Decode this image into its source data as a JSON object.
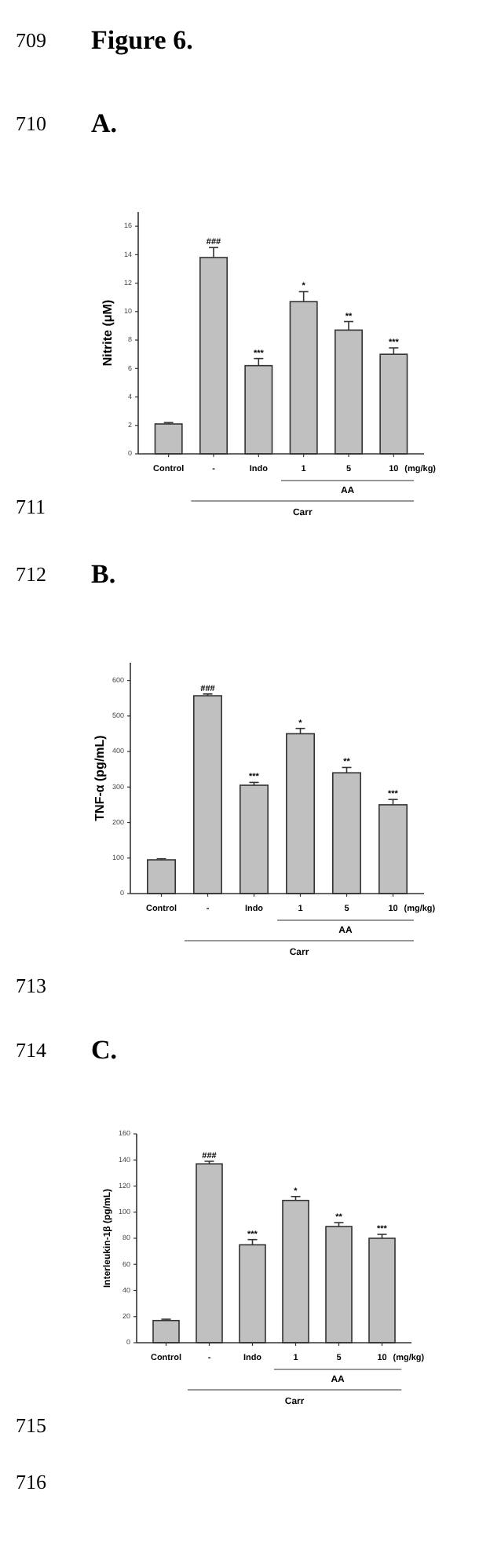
{
  "chart_data": [
    {
      "type": "bar",
      "title": "A.",
      "ylabel": "Nitrite (μM)",
      "categories": [
        "Control",
        "-",
        "Indo",
        "1",
        "5",
        "10"
      ],
      "values": [
        2.1,
        13.8,
        6.2,
        10.7,
        8.7,
        7.0
      ],
      "errors": [
        0.1,
        0.7,
        0.5,
        0.7,
        0.6,
        0.45
      ],
      "color": "#c0c0c0",
      "ylim": [
        0,
        17
      ],
      "yticks": [
        0,
        2,
        4,
        6,
        8,
        10,
        12,
        14,
        16
      ],
      "grid": false,
      "annotations": [
        "709",
        "Figure 6.",
        "710",
        "(mg/kg)",
        "AA",
        "Carr",
        "711",
        {
          "text": "###",
          "x": "-",
          "y": 14.5
        },
        {
          "text": "***",
          "x": "Indo",
          "y": 6.7
        },
        {
          "text": "*",
          "x": "1",
          "y": 11.4
        },
        {
          "text": "**",
          "x": "5",
          "y": 9.3
        },
        {
          "text": "***",
          "x": "10",
          "y": 7.45
        }
      ]
    },
    {
      "type": "bar",
      "title": "B.",
      "ylabel": "TNF-α (pg/mL)",
      "categories": [
        "Control",
        "-",
        "Indo",
        "1",
        "5",
        "10"
      ],
      "values": [
        95,
        557,
        305,
        450,
        340,
        250
      ],
      "errors": [
        3,
        5,
        8,
        15,
        15,
        15
      ],
      "color": "#c0c0c0",
      "ylim": [
        0,
        650
      ],
      "yticks": [
        0,
        100,
        200,
        300,
        400,
        500,
        600
      ],
      "grid": false,
      "annotations": [
        "712",
        "(mg/kg)",
        "AA",
        "Carr",
        "713",
        {
          "text": "###",
          "x": "-",
          "y": 562
        },
        {
          "text": "***",
          "x": "Indo",
          "y": 313
        },
        {
          "text": "*",
          "x": "1",
          "y": 465
        },
        {
          "text": "**",
          "x": "5",
          "y": 355
        },
        {
          "text": "***",
          "x": "10",
          "y": 265
        }
      ]
    },
    {
      "type": "bar",
      "title": "C.",
      "ylabel": "Interleukin-1β (pg/mL)",
      "categories": [
        "Control",
        "-",
        "Indo",
        "1",
        "5",
        "10"
      ],
      "values": [
        17,
        137,
        75,
        109,
        89,
        80
      ],
      "errors": [
        1,
        2,
        4,
        3,
        3,
        3
      ],
      "color": "#c0c0c0",
      "ylim": [
        0,
        160
      ],
      "yticks": [
        0,
        20,
        40,
        60,
        80,
        100,
        120,
        140,
        160
      ],
      "grid": false,
      "annotations": [
        "714",
        "(mg/kg)",
        "AA",
        "Carr",
        "715",
        "716",
        {
          "text": "###",
          "x": "-",
          "y": 139
        },
        {
          "text": "***",
          "x": "Indo",
          "y": 79
        },
        {
          "text": "*",
          "x": "1",
          "y": 112
        },
        {
          "text": "**",
          "x": "5",
          "y": 92
        },
        {
          "text": "***",
          "x": "10",
          "y": 83
        }
      ]
    }
  ]
}
